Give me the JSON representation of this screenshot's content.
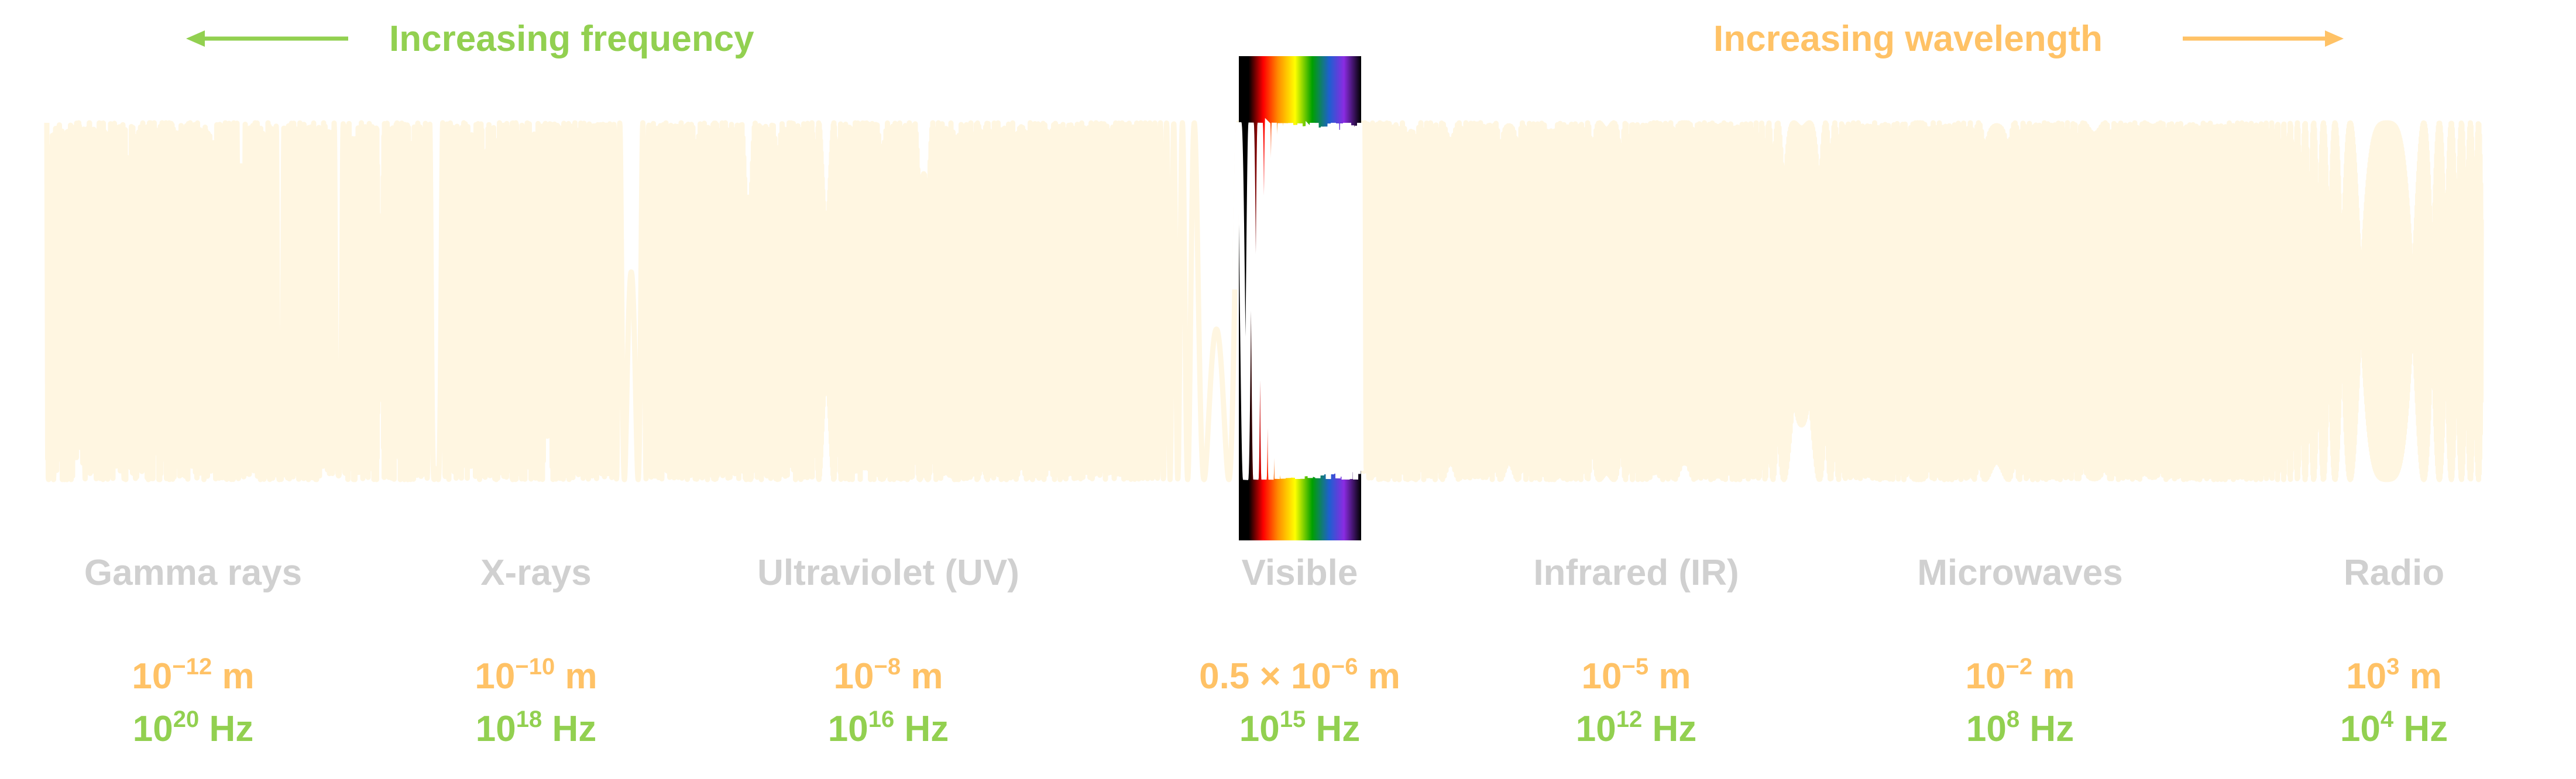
{
  "header": {
    "frequency_label": "Increasing frequency",
    "wavelength_label": "Increasing wavelength"
  },
  "bands": [
    {
      "name": "Gamma rays",
      "wavelength_base": "10",
      "wavelength_exp": "−12",
      "wavelength_unit": " m",
      "wavelength_prefix": "",
      "frequency_base": "10",
      "frequency_exp": "20",
      "frequency_unit": " Hz"
    },
    {
      "name": "X-rays",
      "wavelength_base": "10",
      "wavelength_exp": "−10",
      "wavelength_unit": " m",
      "wavelength_prefix": "",
      "frequency_base": "10",
      "frequency_exp": "18",
      "frequency_unit": " Hz"
    },
    {
      "name": "Ultraviolet (UV)",
      "wavelength_base": "10",
      "wavelength_exp": "−8",
      "wavelength_unit": " m",
      "wavelength_prefix": "",
      "frequency_base": "10",
      "frequency_exp": "16",
      "frequency_unit": " Hz"
    },
    {
      "name": "Visible",
      "wavelength_base": "10",
      "wavelength_exp": "−6",
      "wavelength_unit": " m",
      "wavelength_prefix": "0.5 × ",
      "frequency_base": "10",
      "frequency_exp": "15",
      "frequency_unit": " Hz"
    },
    {
      "name": "Infrared (IR)",
      "wavelength_base": "10",
      "wavelength_exp": "−5",
      "wavelength_unit": " m",
      "wavelength_prefix": "",
      "frequency_base": "10",
      "frequency_exp": "12",
      "frequency_unit": " Hz"
    },
    {
      "name": "Microwaves",
      "wavelength_base": "10",
      "wavelength_exp": "−2",
      "wavelength_unit": " m",
      "wavelength_prefix": "",
      "frequency_base": "10",
      "frequency_exp": "8",
      "frequency_unit": " Hz"
    },
    {
      "name": "Radio",
      "wavelength_base": "10",
      "wavelength_exp": "3",
      "wavelength_unit": " m",
      "wavelength_prefix": "",
      "frequency_base": "10",
      "frequency_exp": "4",
      "frequency_unit": " Hz"
    }
  ],
  "colors": {
    "frequency_green": "#92d050",
    "wavelength_orange": "#ffc266",
    "band_label_gray": "#d0d0d0",
    "wave_faint": "#fff6e1",
    "visible_wave": "#ffffff"
  },
  "visible_spectrum_colors": [
    "#000000",
    "#ff0000",
    "#ff8c00",
    "#ffff00",
    "#00a000",
    "#1e5fd0",
    "#8a2be2",
    "#000000"
  ]
}
